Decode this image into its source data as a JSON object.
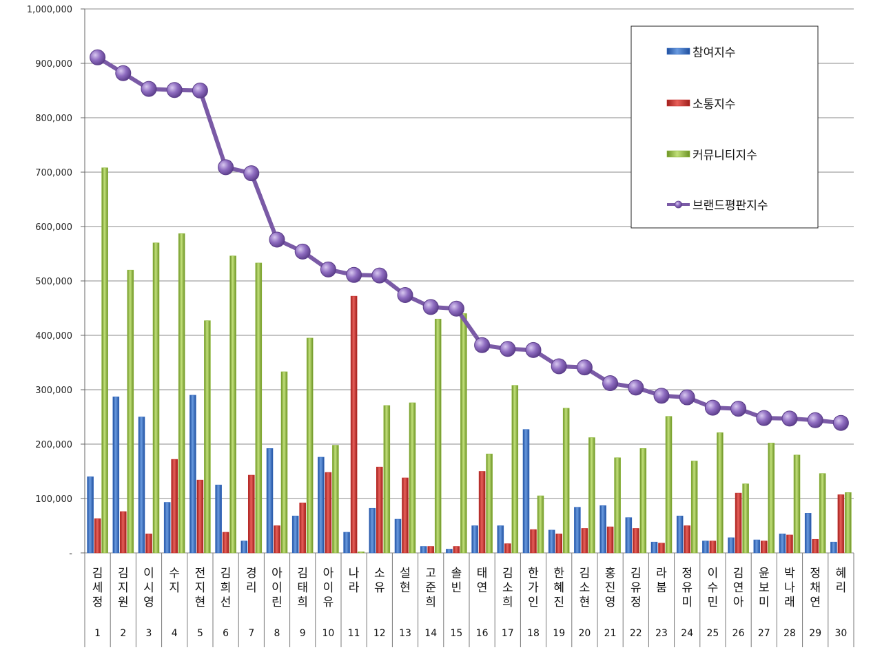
{
  "chart_data": {
    "type": "bar",
    "title": "",
    "xlabel": "",
    "ylabel": "",
    "ylim": [
      0,
      1000000
    ],
    "y_ticks": [
      "-",
      "100,000",
      "200,000",
      "300,000",
      "400,000",
      "500,000",
      "600,000",
      "700,000",
      "800,000",
      "900,000",
      "1,000,000"
    ],
    "grid": true,
    "legend_position": "top-right",
    "categories": [
      "김세정",
      "김지원",
      "이시영",
      "수지",
      "전지현",
      "김희선",
      "경리",
      "아이린",
      "김태희",
      "아이유",
      "나라",
      "소유",
      "설현",
      "고준희",
      "솔빈",
      "태연",
      "김소희",
      "한가인",
      "한혜진",
      "김소현",
      "홍진영",
      "김유정",
      "라붐",
      "정유미",
      "이수민",
      "김연아",
      "윤보미",
      "박나래",
      "정채연",
      "혜리"
    ],
    "ranks": [
      "1",
      "2",
      "3",
      "4",
      "5",
      "6",
      "7",
      "8",
      "9",
      "10",
      "11",
      "12",
      "13",
      "14",
      "15",
      "16",
      "17",
      "18",
      "19",
      "20",
      "21",
      "22",
      "23",
      "24",
      "25",
      "26",
      "27",
      "28",
      "29",
      "30"
    ],
    "series": [
      {
        "name": "참여지수",
        "type": "bar",
        "color": "#3a6fc4",
        "values": [
          140000,
          287000,
          250000,
          93000,
          290000,
          125000,
          22000,
          192000,
          68000,
          176000,
          38000,
          82000,
          62000,
          12000,
          7000,
          50000,
          50000,
          227000,
          42000,
          84000,
          87000,
          65000,
          20000,
          68000,
          22000,
          28000,
          24000,
          35000,
          73000,
          20000
        ]
      },
      {
        "name": "소통지수",
        "type": "bar",
        "color": "#c7302c",
        "values": [
          63000,
          76000,
          35000,
          172000,
          134000,
          38000,
          143000,
          50000,
          92000,
          148000,
          472000,
          158000,
          138000,
          12000,
          12000,
          150000,
          17000,
          43000,
          35000,
          45000,
          48000,
          45000,
          18000,
          50000,
          22000,
          110000,
          22000,
          33000,
          25000,
          107000
        ]
      },
      {
        "name": "커뮤니티지수",
        "type": "bar",
        "color": "#8fb83c",
        "values": [
          708000,
          520000,
          570000,
          587000,
          427000,
          546000,
          533000,
          333000,
          395000,
          198000,
          2000,
          271000,
          276000,
          430000,
          440000,
          182000,
          308000,
          105000,
          266000,
          212000,
          175000,
          192000,
          251000,
          169000,
          221000,
          127000,
          202000,
          180000,
          146000,
          111000
        ]
      },
      {
        "name": "브랜드평판지수",
        "type": "line",
        "color": "#7a5aa6",
        "values": [
          911000,
          882000,
          853000,
          851000,
          850000,
          709000,
          698000,
          576000,
          554000,
          521000,
          511000,
          510000,
          474000,
          452000,
          449000,
          382000,
          375000,
          373000,
          343000,
          341000,
          312000,
          304000,
          289000,
          286000,
          267000,
          265000,
          248000,
          247000,
          244000,
          239000
        ]
      }
    ]
  }
}
